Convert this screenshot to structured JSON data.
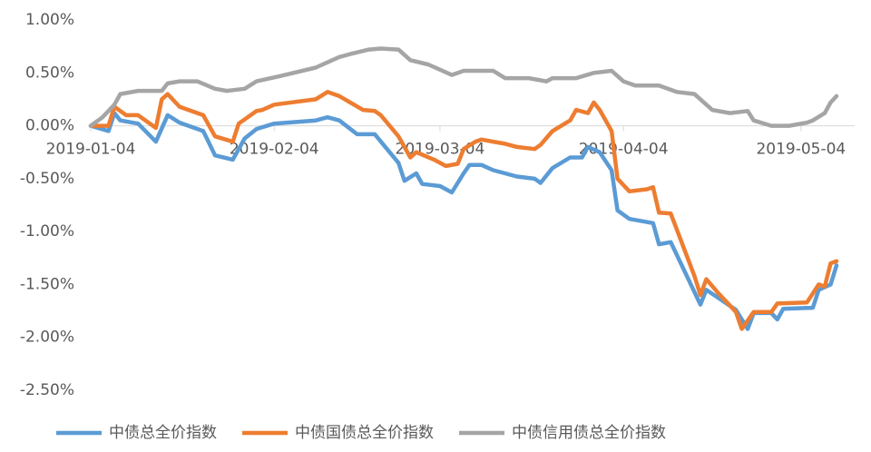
{
  "chart_data": {
    "type": "line",
    "xlim": [
      "2019-01-04",
      "2019-05-10"
    ],
    "xticks": [
      "2019-01-04",
      "2019-02-04",
      "2019-03-04",
      "2019-04-04",
      "2019-05-04"
    ],
    "ylim": [
      -2.5,
      1
    ],
    "yticks": [
      {
        "value": -2.5,
        "label": "-2.50%"
      },
      {
        "value": -2,
        "label": "-2.00%"
      },
      {
        "value": -1.5,
        "label": "-1.50%"
      },
      {
        "value": -1,
        "label": "-1.00%"
      },
      {
        "value": -0.5,
        "label": "-0.50%"
      },
      {
        "value": 0,
        "label": "0.00%"
      },
      {
        "value": 0.5,
        "label": "0.50%"
      },
      {
        "value": 1,
        "label": "1.00%"
      }
    ],
    "grid": false,
    "legend": "bottom",
    "series": [
      {
        "name": "中债总全价指数",
        "color": "#5b9bd5",
        "x": [
          "2019-01-04",
          "2019-01-07",
          "2019-01-08",
          "2019-01-09",
          "2019-01-12",
          "2019-01-15",
          "2019-01-17",
          "2019-01-19",
          "2019-01-23",
          "2019-01-25",
          "2019-01-28",
          "2019-01-30",
          "2019-02-01",
          "2019-02-04",
          "2019-02-11",
          "2019-02-13",
          "2019-02-15",
          "2019-02-18",
          "2019-02-21",
          "2019-02-25",
          "2019-02-26",
          "2019-02-28",
          "2019-03-01",
          "2019-03-04",
          "2019-03-06",
          "2019-03-08",
          "2019-03-09",
          "2019-03-11",
          "2019-03-13",
          "2019-03-15",
          "2019-03-17",
          "2019-03-20",
          "2019-03-21",
          "2019-03-23",
          "2019-03-26",
          "2019-03-28",
          "2019-03-29",
          "2019-03-31",
          "2019-04-02",
          "2019-04-03",
          "2019-04-05",
          "2019-04-09",
          "2019-04-10",
          "2019-04-12",
          "2019-04-17",
          "2019-04-18",
          "2019-04-23",
          "2019-04-25",
          "2019-04-26",
          "2019-04-29",
          "2019-04-30",
          "2019-05-01",
          "2019-05-06",
          "2019-05-07",
          "2019-05-09",
          "2019-05-10"
        ],
        "values": [
          0,
          -0.05,
          0.12,
          0.05,
          0.02,
          -0.15,
          0.1,
          0.03,
          -0.05,
          -0.28,
          -0.32,
          -0.12,
          -0.03,
          0.02,
          0.05,
          0.08,
          0.05,
          -0.08,
          -0.08,
          -0.35,
          -0.52,
          -0.45,
          -0.55,
          -0.57,
          -0.63,
          -0.45,
          -0.37,
          -0.37,
          -0.42,
          -0.45,
          -0.48,
          -0.5,
          -0.54,
          -0.4,
          -0.3,
          -0.3,
          -0.2,
          -0.25,
          -0.42,
          -0.8,
          -0.88,
          -0.92,
          -1.12,
          -1.1,
          -1.69,
          -1.55,
          -1.74,
          -1.92,
          -1.77,
          -1.77,
          -1.83,
          -1.73,
          -1.72,
          -1.55,
          -1.5,
          -1.32
        ]
      },
      {
        "name": "中债国债总全价指数",
        "color": "#ed7d31",
        "x": [
          "2019-01-04",
          "2019-01-07",
          "2019-01-08",
          "2019-01-10",
          "2019-01-12",
          "2019-01-15",
          "2019-01-16",
          "2019-01-17",
          "2019-01-19",
          "2019-01-23",
          "2019-01-25",
          "2019-01-28",
          "2019-01-29",
          "2019-02-01",
          "2019-02-02",
          "2019-02-04",
          "2019-02-11",
          "2019-02-13",
          "2019-02-15",
          "2019-02-19",
          "2019-02-21",
          "2019-02-22",
          "2019-02-25",
          "2019-02-27",
          "2019-02-28",
          "2019-03-03",
          "2019-03-05",
          "2019-03-07",
          "2019-03-08",
          "2019-03-10",
          "2019-03-11",
          "2019-03-13",
          "2019-03-15",
          "2019-03-17",
          "2019-03-20",
          "2019-03-21",
          "2019-03-23",
          "2019-03-26",
          "2019-03-27",
          "2019-03-29",
          "2019-03-30",
          "2019-03-31",
          "2019-04-02",
          "2019-04-03",
          "2019-04-05",
          "2019-04-08",
          "2019-04-09",
          "2019-04-10",
          "2019-04-12",
          "2019-04-16",
          "2019-04-17",
          "2019-04-18",
          "2019-04-20",
          "2019-04-23",
          "2019-04-24",
          "2019-04-26",
          "2019-04-29",
          "2019-04-30",
          "2019-05-05",
          "2019-05-07",
          "2019-05-08",
          "2019-05-09",
          "2019-05-10"
        ],
        "values": [
          0,
          0,
          0.18,
          0.1,
          0.1,
          -0.02,
          0.25,
          0.3,
          0.18,
          0.1,
          -0.1,
          -0.15,
          0.02,
          0.14,
          0.15,
          0.2,
          0.25,
          0.32,
          0.28,
          0.15,
          0.14,
          0.1,
          -0.1,
          -0.3,
          -0.25,
          -0.32,
          -0.38,
          -0.36,
          -0.22,
          -0.15,
          -0.13,
          -0.15,
          -0.17,
          -0.2,
          -0.22,
          -0.18,
          -0.05,
          0.05,
          0.15,
          0.12,
          0.22,
          0.15,
          -0.05,
          -0.5,
          -0.62,
          -0.6,
          -0.58,
          -0.82,
          -0.83,
          -1.42,
          -1.6,
          -1.45,
          -1.58,
          -1.76,
          -1.92,
          -1.76,
          -1.76,
          -1.68,
          -1.67,
          -1.5,
          -1.52,
          -1.3,
          -1.28
        ]
      },
      {
        "name": "中债信用债总全价指数",
        "color": "#a5a5a5",
        "x": [
          "2019-01-04",
          "2019-01-06",
          "2019-01-08",
          "2019-01-09",
          "2019-01-12",
          "2019-01-16",
          "2019-01-17",
          "2019-01-19",
          "2019-01-22",
          "2019-01-25",
          "2019-01-27",
          "2019-01-30",
          "2019-02-01",
          "2019-02-05",
          "2019-02-11",
          "2019-02-15",
          "2019-02-17",
          "2019-02-20",
          "2019-02-22",
          "2019-02-25",
          "2019-02-27",
          "2019-03-02",
          "2019-03-06",
          "2019-03-08",
          "2019-03-13",
          "2019-03-15",
          "2019-03-19",
          "2019-03-22",
          "2019-03-23",
          "2019-03-27",
          "2019-03-30",
          "2019-04-02",
          "2019-04-04",
          "2019-04-06",
          "2019-04-10",
          "2019-04-13",
          "2019-04-16",
          "2019-04-19",
          "2019-04-22",
          "2019-04-25",
          "2019-04-26",
          "2019-04-29",
          "2019-05-02",
          "2019-05-05",
          "2019-05-06",
          "2019-05-08",
          "2019-05-09",
          "2019-05-10"
        ],
        "values": [
          0,
          0.08,
          0.2,
          0.3,
          0.33,
          0.33,
          0.4,
          0.42,
          0.42,
          0.35,
          0.33,
          0.35,
          0.42,
          0.47,
          0.55,
          0.65,
          0.68,
          0.72,
          0.73,
          0.72,
          0.62,
          0.58,
          0.48,
          0.52,
          0.52,
          0.45,
          0.45,
          0.42,
          0.45,
          0.45,
          0.5,
          0.52,
          0.42,
          0.38,
          0.38,
          0.32,
          0.3,
          0.15,
          0.12,
          0.14,
          0.05,
          0,
          0,
          0.03,
          0.05,
          0.12,
          0.22,
          0.28
        ]
      }
    ]
  }
}
